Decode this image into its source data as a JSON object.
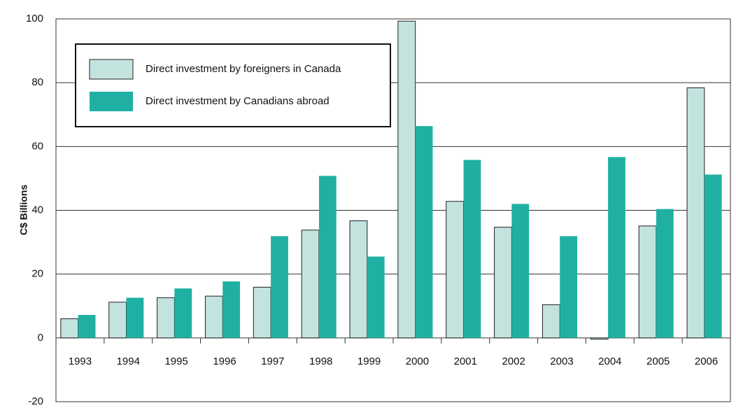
{
  "chart_data": {
    "type": "bar",
    "y_label": "C$ Billions",
    "categories": [
      "1993",
      "1994",
      "1995",
      "1996",
      "1997",
      "1998",
      "1999",
      "2000",
      "2001",
      "2002",
      "2003",
      "2004",
      "2005",
      "2006"
    ],
    "series": [
      {
        "name": "Direct investment by foreigners in Canada",
        "color": "#c3e3df",
        "values": [
          6.0,
          11.2,
          12.6,
          13.1,
          15.9,
          33.8,
          36.7,
          99.3,
          42.8,
          34.7,
          10.4,
          -0.4,
          35.1,
          78.4
        ]
      },
      {
        "name": "Direct investment by Canadians abroad",
        "color": "#20b0a3",
        "values": [
          7.2,
          12.6,
          15.5,
          17.7,
          31.9,
          50.8,
          25.5,
          66.4,
          55.8,
          42.0,
          31.9,
          56.7,
          40.4,
          51.2
        ]
      }
    ],
    "ylim": [
      -20,
      100
    ],
    "yticks": [
      -20,
      0,
      20,
      40,
      60,
      80,
      100
    ],
    "grid": true,
    "legend": "upper left"
  }
}
